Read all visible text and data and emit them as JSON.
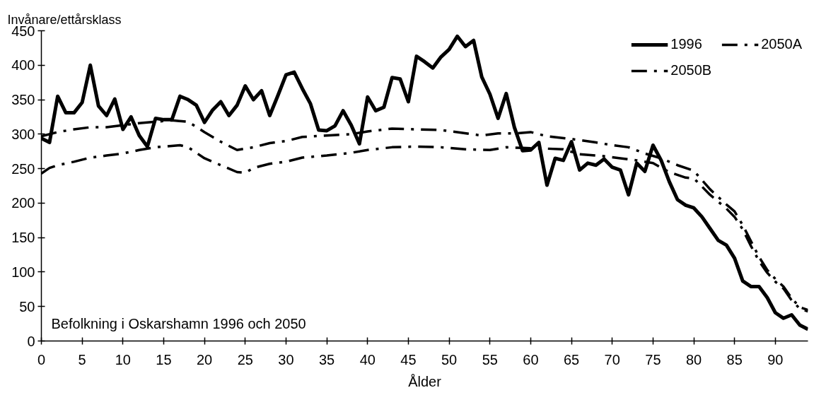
{
  "chart_data": {
    "type": "line",
    "title": "Befolkning i Oskarshamn 1996 och 2050",
    "xlabel": "Ålder",
    "ylabel": "Invånare/ettårsklass",
    "xlim": [
      0,
      94
    ],
    "ylim": [
      0,
      450
    ],
    "xticks": [
      0,
      5,
      10,
      15,
      20,
      25,
      30,
      35,
      40,
      45,
      50,
      55,
      60,
      65,
      70,
      75,
      80,
      85,
      90
    ],
    "yticks": [
      0,
      50,
      100,
      150,
      200,
      250,
      300,
      350,
      400,
      450
    ],
    "legend": "top right",
    "series": [
      {
        "name": "1996",
        "color": "#000000",
        "line_style": "solid",
        "x": [
          0,
          1,
          2,
          3,
          4,
          5,
          6,
          7,
          8,
          9,
          10,
          11,
          12,
          13,
          14,
          15,
          16,
          17,
          18,
          19,
          20,
          21,
          22,
          23,
          24,
          25,
          26,
          27,
          28,
          29,
          30,
          31,
          32,
          33,
          34,
          35,
          36,
          37,
          38,
          39,
          40,
          41,
          42,
          43,
          44,
          45,
          46,
          47,
          48,
          49,
          50,
          51,
          52,
          53,
          54,
          55,
          56,
          57,
          58,
          59,
          60,
          61,
          62,
          63,
          64,
          65,
          66,
          67,
          68,
          69,
          70,
          71,
          72,
          73,
          74,
          75,
          76,
          77,
          78,
          79,
          80,
          81,
          82,
          83,
          84,
          85,
          86,
          87,
          88,
          89,
          90,
          91,
          92,
          93,
          94
        ],
        "values": [
          294,
          288,
          355,
          331,
          331,
          346,
          400,
          341,
          327,
          351,
          307,
          325,
          298,
          282,
          323,
          321,
          321,
          355,
          350,
          342,
          317,
          335,
          347,
          327,
          342,
          370,
          350,
          363,
          327,
          356,
          386,
          390,
          366,
          344,
          306,
          305,
          312,
          334,
          313,
          286,
          354,
          334,
          339,
          382,
          380,
          347,
          413,
          405,
          396,
          412,
          423,
          442,
          427,
          436,
          383,
          358,
          323,
          359,
          310,
          276,
          277,
          288,
          226,
          265,
          262,
          289,
          248,
          258,
          255,
          264,
          252,
          248,
          212,
          258,
          246,
          284,
          262,
          231,
          205,
          197,
          193,
          180,
          163,
          146,
          139,
          120,
          87,
          79,
          79,
          63,
          41,
          33,
          38,
          23,
          17
        ]
      },
      {
        "name": "2050A",
        "color": "#000000",
        "line_style": "dashed",
        "x": [
          0,
          2,
          4,
          6,
          8,
          10,
          12,
          14,
          16,
          18,
          20,
          22,
          24,
          26,
          28,
          30,
          32,
          35,
          38,
          40,
          43,
          46,
          49,
          51,
          54,
          56,
          58,
          60,
          62,
          65,
          68,
          70,
          72,
          74,
          76,
          78,
          80,
          82,
          84,
          85,
          86,
          87,
          88,
          89,
          90,
          91,
          92,
          93,
          94
        ],
        "values": [
          297,
          303,
          307,
          310,
          310,
          313,
          316,
          318,
          320,
          318,
          303,
          289,
          277,
          281,
          287,
          290,
          296,
          298,
          300,
          304,
          308,
          307,
          306,
          303,
          298,
          301,
          301,
          303,
          297,
          293,
          288,
          284,
          281,
          272,
          265,
          255,
          247,
          220,
          198,
          188,
          168,
          145,
          122,
          103,
          90,
          79,
          62,
          49,
          45
        ]
      },
      {
        "name": "2050B",
        "color": "#000000",
        "line_style": "dashed",
        "x": [
          0,
          1,
          2,
          4,
          6,
          8,
          10,
          12,
          14,
          16,
          17,
          18,
          20,
          22,
          24,
          25,
          26,
          28,
          30,
          32,
          35,
          38,
          40,
          43,
          46,
          49,
          52,
          55,
          57,
          59,
          62,
          64,
          66,
          69,
          71,
          73,
          75,
          77,
          79,
          80,
          82,
          84,
          85,
          86,
          87,
          88,
          89,
          90,
          91,
          92,
          93,
          94
        ],
        "values": [
          243,
          251,
          255,
          260,
          266,
          269,
          272,
          277,
          281,
          283,
          284,
          281,
          265,
          255,
          245,
          244,
          251,
          257,
          260,
          266,
          269,
          273,
          277,
          281,
          282,
          281,
          278,
          277,
          281,
          280,
          279,
          278,
          271,
          268,
          265,
          262,
          258,
          245,
          237,
          236,
          212,
          192,
          180,
          162,
          138,
          116,
          99,
          86,
          76,
          59,
          47,
          43
        ]
      }
    ]
  }
}
